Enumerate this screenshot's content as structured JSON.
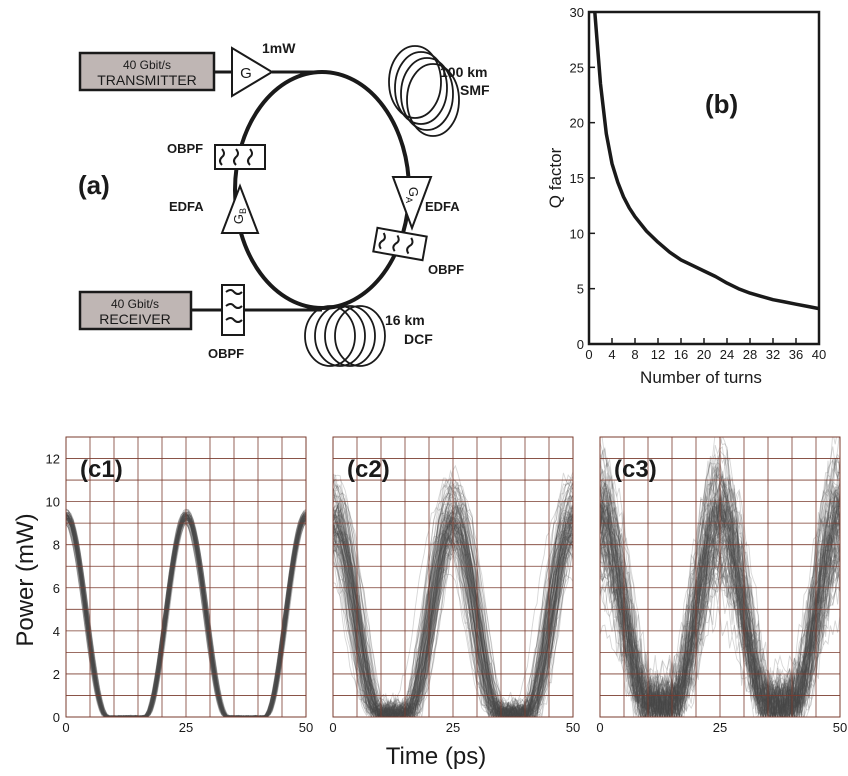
{
  "schematic": {
    "panel_label": "(a)",
    "transmitter": {
      "rate": "40 Gbit/s",
      "name": "TRANSMITTER"
    },
    "receiver": {
      "rate": "40 Gbit/s",
      "name": "RECEIVER"
    },
    "amp_g": "G",
    "power": "1mW",
    "smf_length": "100 km",
    "smf_name": "SMF",
    "dcf_length": "16 km",
    "dcf_name": "DCF",
    "obpf": "OBPF",
    "edfa": "EDFA",
    "gain_a": "G",
    "gain_a_sub": "A",
    "gain_b": "G",
    "gain_b_sub": "B"
  },
  "chart_data": [
    {
      "type": "line",
      "panel_label": "(b)",
      "xlabel": "Number of turns",
      "ylabel": "Q factor",
      "xlim": [
        0,
        40
      ],
      "ylim": [
        0,
        30
      ],
      "xticks": [
        0,
        4,
        8,
        12,
        16,
        20,
        24,
        28,
        32,
        36,
        40
      ],
      "yticks": [
        0,
        5,
        10,
        15,
        20,
        25,
        30
      ],
      "grid": false,
      "x": [
        1,
        2,
        3,
        4,
        5,
        6,
        7,
        8,
        10,
        12,
        14,
        16,
        18,
        20,
        22,
        24,
        26,
        28,
        30,
        32,
        34,
        36,
        38,
        40
      ],
      "y": [
        30.5,
        23.5,
        19.0,
        16.3,
        14.6,
        13.3,
        12.3,
        11.5,
        10.2,
        9.2,
        8.3,
        7.6,
        7.1,
        6.6,
        6.1,
        5.5,
        5.0,
        4.6,
        4.3,
        4.0,
        3.8,
        3.6,
        3.4,
        3.2
      ],
      "color": "#1a1a1a"
    },
    {
      "type": "line",
      "subtype": "eye-diagram",
      "panel_label": "(c1)",
      "xlim": [
        0,
        50
      ],
      "ylim": [
        0,
        13
      ],
      "xticks": [
        0,
        25,
        50
      ],
      "yticks": [
        0,
        2,
        4,
        6,
        8,
        10,
        12
      ],
      "grid": true,
      "peak_centers_ps": [
        0,
        25,
        50
      ],
      "peak_power_mw": 9.3,
      "peak_spread_mw": 0.4,
      "pulse_half_width_ps": 8.5,
      "noise_floor_mw": 0.05,
      "color": "#4a4a4a"
    },
    {
      "type": "line",
      "subtype": "eye-diagram",
      "panel_label": "(c2)",
      "xlim": [
        0,
        50
      ],
      "ylim": [
        0,
        13
      ],
      "xticks": [
        0,
        25,
        50
      ],
      "grid": true,
      "peak_centers_ps": [
        0,
        25,
        50
      ],
      "peak_power_mw": 9.0,
      "peak_spread_mw": 2.0,
      "pulse_half_width_ps": 9.5,
      "noise_floor_mw": 0.6,
      "color": "#4a4a4a"
    },
    {
      "type": "line",
      "subtype": "eye-diagram",
      "panel_label": "(c3)",
      "xlim": [
        0,
        50
      ],
      "ylim": [
        0,
        13
      ],
      "xticks": [
        0,
        25,
        50
      ],
      "grid": true,
      "peak_centers_ps": [
        0,
        25,
        50
      ],
      "peak_power_mw": 8.5,
      "peak_spread_mw": 3.0,
      "pulse_half_width_ps": 10.0,
      "noise_floor_mw": 1.5,
      "color": "#4a4a4a"
    }
  ],
  "eye_axes": {
    "ylabel": "Power  (mW)",
    "xlabel": "Time (ps)"
  },
  "colors": {
    "grid": "#7a3b2e",
    "box_fill": "#bfb6b4",
    "trace": "#4a4a4a",
    "line": "#1a1a1a"
  }
}
